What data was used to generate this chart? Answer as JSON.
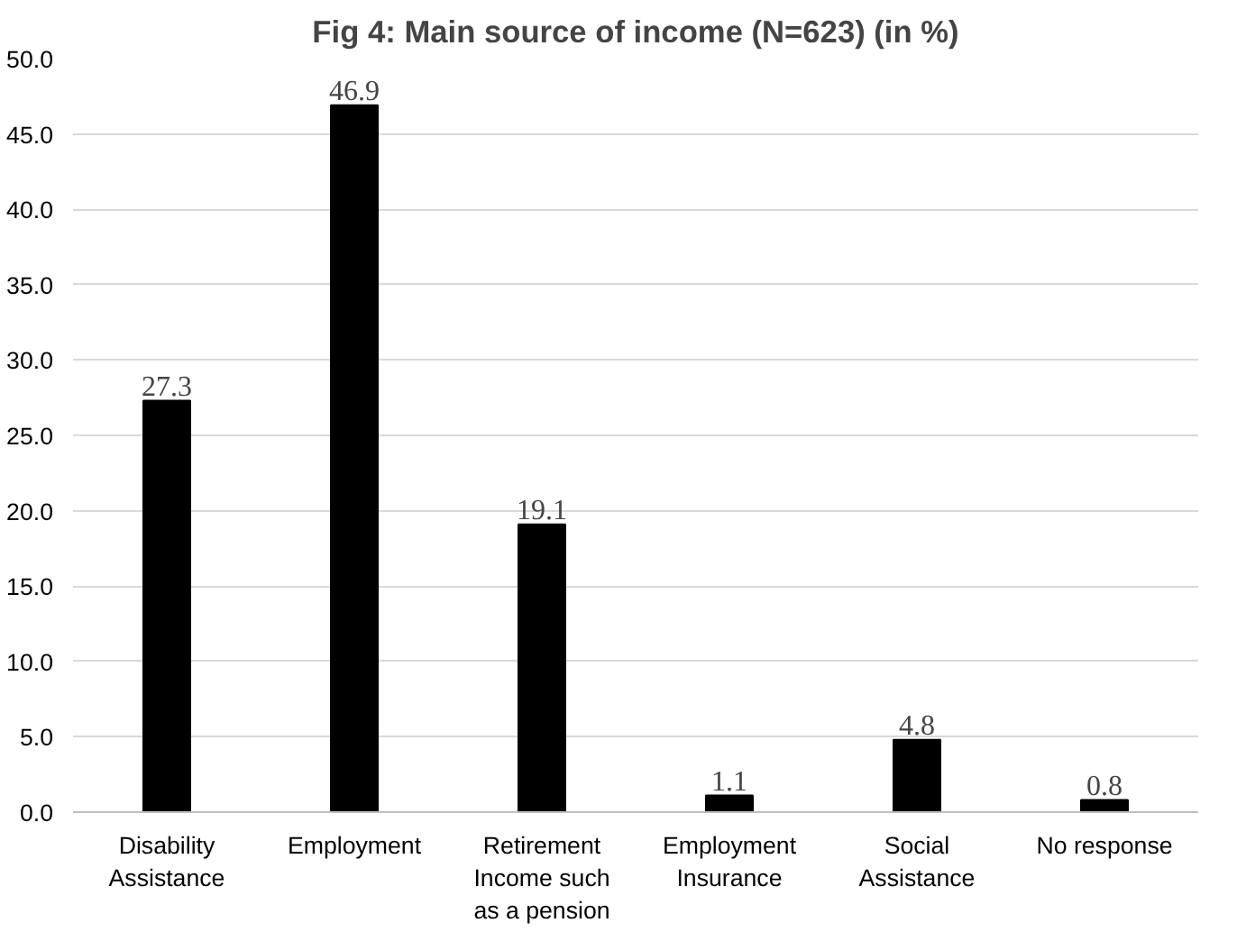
{
  "chart_data": {
    "type": "bar",
    "title": "Fig 4: Main source of income (N=623) (in %)",
    "categories": [
      "Disability\nAssistance",
      "Employment",
      "Retirement\nIncome such\nas a pension",
      "Employment\nInsurance",
      "Social\nAssistance",
      "No response"
    ],
    "values": [
      27.3,
      46.9,
      19.1,
      1.1,
      4.8,
      0.8
    ],
    "color": "#000000",
    "ylim": [
      0,
      50
    ],
    "yticks": [
      {
        "value": 0,
        "label": "0.0"
      },
      {
        "value": 5,
        "label": "5.0"
      },
      {
        "value": 10,
        "label": "10.0"
      },
      {
        "value": 15,
        "label": "15.0"
      },
      {
        "value": 20,
        "label": "20.0"
      },
      {
        "value": 25,
        "label": "25.0"
      },
      {
        "value": 30,
        "label": "30.0"
      },
      {
        "value": 35,
        "label": "35.0"
      },
      {
        "value": 40,
        "label": "40.0"
      },
      {
        "value": 45,
        "label": "45.0"
      },
      {
        "value": 50,
        "label": "50.0"
      }
    ],
    "grid": "y",
    "data_labels": true
  }
}
